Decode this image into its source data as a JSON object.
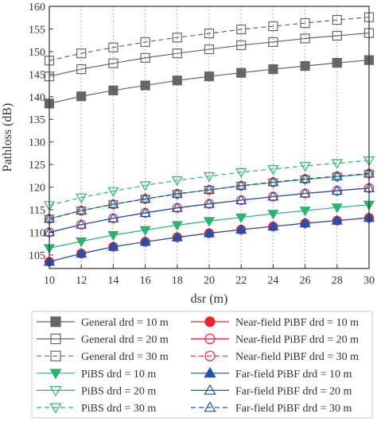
{
  "chart_data": {
    "type": "line",
    "xlabel": "dsr (m)",
    "ylabel": "Pathloss (dB)",
    "xlim": [
      10,
      30
    ],
    "ylim": [
      102,
      160
    ],
    "xticks": [
      10,
      12,
      14,
      16,
      18,
      20,
      22,
      24,
      26,
      28,
      30
    ],
    "yticks": [
      105,
      110,
      115,
      120,
      125,
      130,
      135,
      140,
      145,
      150,
      155,
      160
    ],
    "grid": "dotted vertical at x ticks",
    "legend_position": "bottom, below plot, two columns",
    "x": [
      10,
      12,
      14,
      16,
      18,
      20,
      22,
      24,
      26,
      28,
      30
    ],
    "series": [
      {
        "name": "General drd = 10 m",
        "color": "#666666",
        "marker": "filled-square",
        "dash": false,
        "values": [
          138.5,
          140.1,
          141.4,
          142.5,
          143.6,
          144.5,
          145.3,
          146.1,
          146.8,
          147.5,
          148.1
        ]
      },
      {
        "name": "General drd = 20 m",
        "color": "#666666",
        "marker": "open-square",
        "dash": false,
        "values": [
          144.5,
          146.1,
          147.4,
          148.6,
          149.6,
          150.5,
          151.4,
          152.1,
          152.9,
          153.5,
          154.1
        ]
      },
      {
        "name": "General drd = 30 m",
        "color": "#666666",
        "marker": "open-square",
        "dash": true,
        "values": [
          148.0,
          149.6,
          150.9,
          152.1,
          153.1,
          154.0,
          154.9,
          155.6,
          156.3,
          157.0,
          157.6
        ]
      },
      {
        "name": "PiBS drd = 10 m",
        "color": "#2db36f",
        "marker": "filled-triangle-down",
        "dash": false,
        "values": [
          106.5,
          108.0,
          109.4,
          110.5,
          111.6,
          112.5,
          113.3,
          114.1,
          114.8,
          115.5,
          116.1
        ]
      },
      {
        "name": "PiBS drd = 20 m",
        "color": "#2db36f",
        "marker": "open-triangle-down",
        "dash": false,
        "values": [
          113.0,
          114.8,
          116.2,
          117.4,
          118.5,
          119.4,
          120.3,
          121.0,
          121.7,
          122.3,
          122.9
        ]
      },
      {
        "name": "PiBS drd = 30 m",
        "color": "#2db36f",
        "marker": "open-triangle-down",
        "dash": true,
        "values": [
          116.0,
          117.7,
          119.1,
          120.4,
          121.5,
          122.4,
          123.3,
          124.0,
          124.7,
          125.3,
          125.9
        ]
      },
      {
        "name": "Near-field PiBF drd = 10 m",
        "color": "#e8262b",
        "marker": "filled-circle",
        "dash": false,
        "values": [
          103.5,
          105.3,
          106.8,
          107.9,
          108.9,
          109.8,
          110.6,
          111.3,
          112.0,
          112.6,
          113.2
        ]
      },
      {
        "name": "Near-field PiBF drd = 20 m",
        "color": "#e8262b",
        "marker": "open-circle",
        "dash": false,
        "values": [
          110.0,
          111.7,
          113.1,
          114.3,
          115.4,
          116.3,
          117.1,
          117.9,
          118.6,
          119.2,
          119.8
        ]
      },
      {
        "name": "Near-field PiBF drd = 30 m",
        "color": "#e8262b",
        "marker": "open-circle",
        "dash": true,
        "values": [
          113.0,
          114.8,
          116.2,
          117.4,
          118.5,
          119.4,
          120.3,
          121.1,
          121.8,
          122.4,
          123.0
        ]
      },
      {
        "name": "Far-field PiBF drd = 10 m",
        "color": "#2050b0",
        "marker": "filled-triangle-up",
        "dash": false,
        "values": [
          103.5,
          105.3,
          106.8,
          107.9,
          108.9,
          109.8,
          110.6,
          111.3,
          112.0,
          112.6,
          113.2
        ]
      },
      {
        "name": "Far-field PiBF drd = 20 m",
        "color": "#2050b0",
        "marker": "open-triangle-up",
        "dash": false,
        "values": [
          110.0,
          111.7,
          113.1,
          114.3,
          115.4,
          116.3,
          117.1,
          117.9,
          118.6,
          119.2,
          119.8
        ]
      },
      {
        "name": "Far-field PiBF drd = 30 m",
        "color": "#2050b0",
        "marker": "open-triangle-up",
        "dash": true,
        "values": [
          113.0,
          114.8,
          116.2,
          117.4,
          118.5,
          119.4,
          120.3,
          121.1,
          121.8,
          122.4,
          123.0
        ]
      }
    ]
  }
}
